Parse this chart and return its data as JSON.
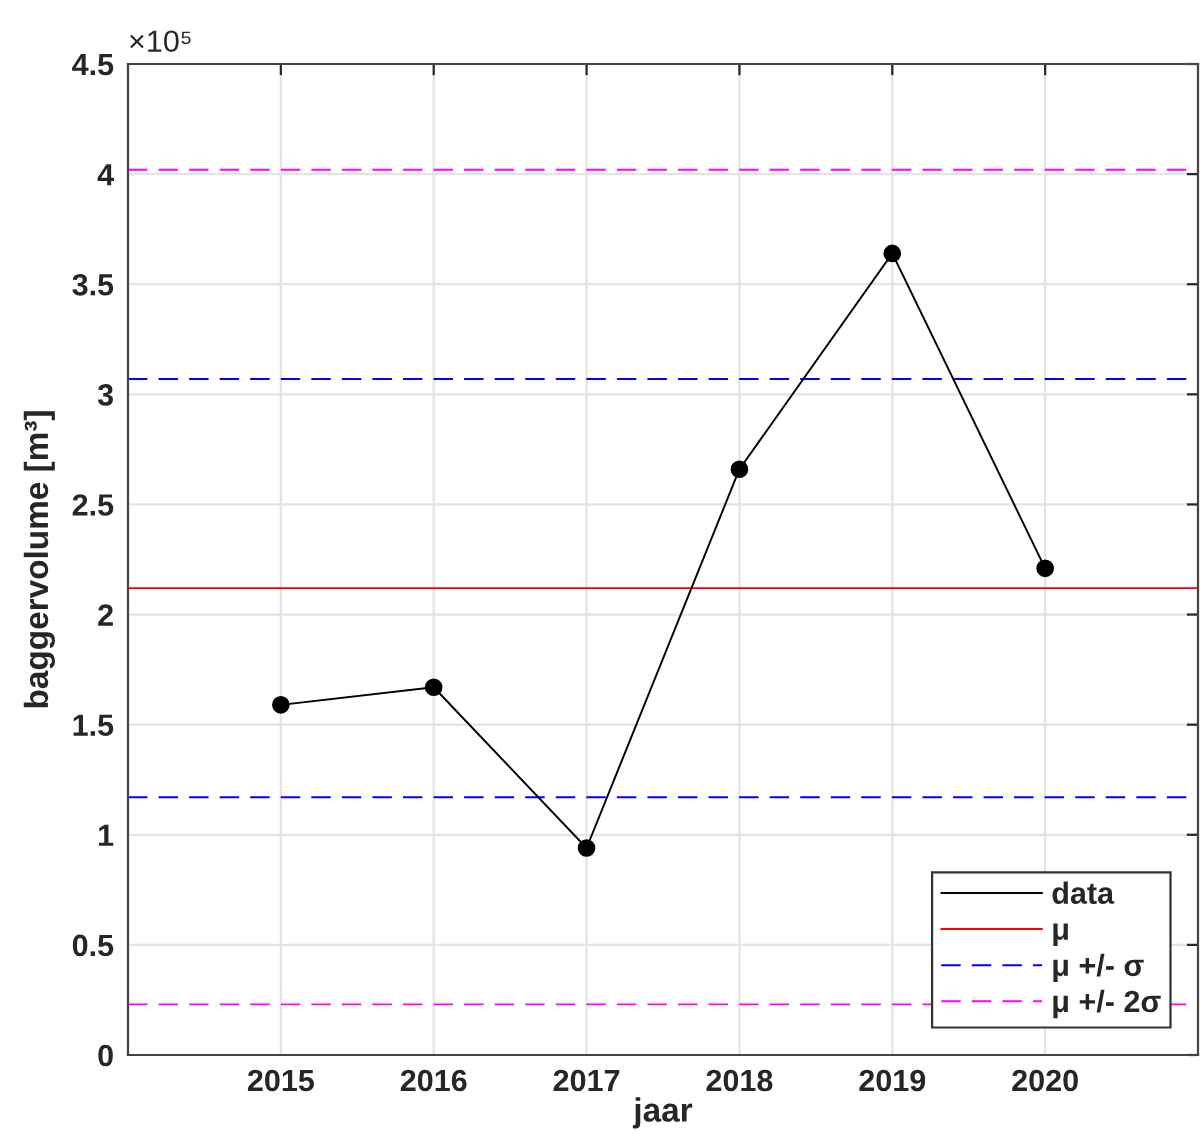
{
  "chart_data": {
    "type": "line",
    "xlabel": "jaar",
    "ylabel": "baggervolume [m³]",
    "annotations": [
      "×10⁵"
    ],
    "x": [
      2015,
      2016,
      2017,
      2018,
      2019,
      2020
    ],
    "series": [
      {
        "name": "data",
        "color": "#000000",
        "values": [
          1.59,
          1.67,
          0.94,
          2.66,
          3.64,
          2.21
        ]
      }
    ],
    "xlim": [
      2014,
      2021
    ],
    "xticks": [
      2015,
      2016,
      2017,
      2018,
      2019,
      2020
    ],
    "ylim": [
      0,
      4.5
    ],
    "yticks": [
      0,
      0.5,
      1,
      1.5,
      2,
      2.5,
      3,
      3.5,
      4,
      4.5
    ],
    "ref_lines": [
      {
        "axis": "y",
        "value": 2.12,
        "label": "μ",
        "color": "#ff0000",
        "line_style": "solid"
      },
      {
        "axis": "y",
        "value": 3.07,
        "label": "μ +/- σ",
        "color": "#0000ff",
        "line_style": "dashed"
      },
      {
        "axis": "y",
        "value": 1.17,
        "color": "#0000ff",
        "line_style": "dashed"
      },
      {
        "axis": "y",
        "value": 4.02,
        "label": "μ +/- 2σ",
        "color": "#ff00ff",
        "line_style": "dashed"
      },
      {
        "axis": "y",
        "value": 0.23,
        "color": "#ff00ff",
        "line_style": "dashed"
      }
    ],
    "grid": true,
    "legend": "bottom right",
    "marker": "circle",
    "line_style": "solid"
  }
}
